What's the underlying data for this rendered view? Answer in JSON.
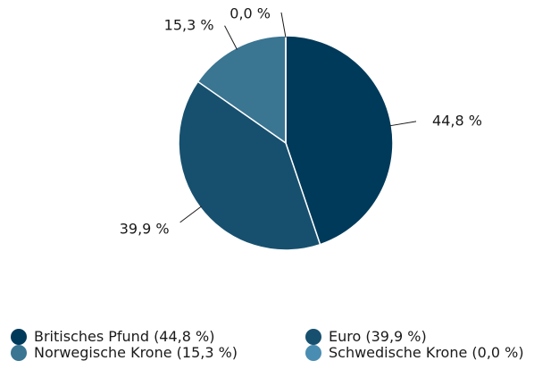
{
  "chart_data": {
    "type": "pie",
    "categories": [
      "Britisches Pfund (44,8 %)",
      "Euro (39,9 %)",
      "Norwegische Krone (15,3 %)",
      "Schwedische Krone (0,0 %)"
    ],
    "values": [
      44.8,
      39.9,
      15.3,
      0.0
    ],
    "value_labels": [
      "44,8 %",
      "39,9 %",
      "15,3 %",
      "0,0 %"
    ],
    "colors": [
      "#003a5a",
      "#17506f",
      "#3a7592",
      "#4a8db2"
    ]
  }
}
